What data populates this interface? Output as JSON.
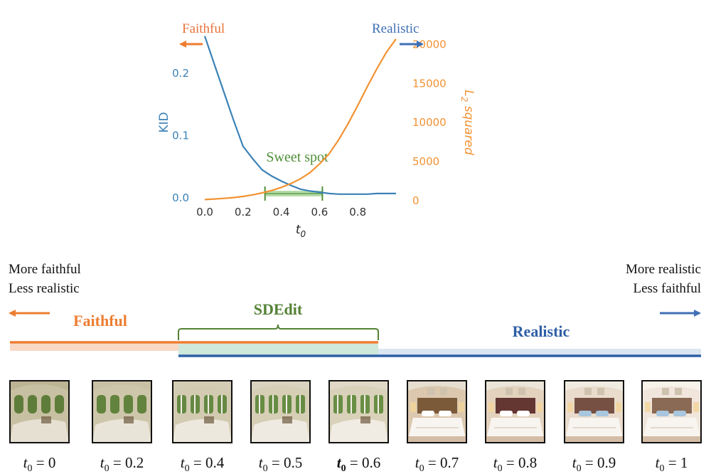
{
  "chart_data": {
    "type": "line",
    "x_axis": {
      "label": "t_0",
      "range": [
        0,
        1
      ],
      "ticks": [
        "0.0",
        "0.2",
        "0.4",
        "0.6",
        "0.8"
      ]
    },
    "y_left": {
      "label": "KID",
      "range": [
        0,
        0.27
      ],
      "ticks": [
        "0.0",
        "0.1",
        "0.2"
      ],
      "color": "#3b82b7"
    },
    "y_right": {
      "label": "L_2 squared",
      "range": [
        0,
        21500
      ],
      "ticks": [
        "0",
        "5000",
        "10000",
        "15000",
        "20000"
      ],
      "color": "#f39233"
    },
    "series": [
      {
        "axis": "left",
        "color": "#3b82b7",
        "x": [
          0.0,
          0.05,
          0.1,
          0.15,
          0.2,
          0.25,
          0.3,
          0.35,
          0.4,
          0.45,
          0.5,
          0.55,
          0.6,
          0.65,
          0.7,
          0.75,
          0.8,
          0.85,
          0.9,
          0.95,
          1.0
        ],
        "y": [
          0.26,
          0.215,
          0.17,
          0.125,
          0.083,
          0.063,
          0.045,
          0.035,
          0.027,
          0.02,
          0.014,
          0.011,
          0.009,
          0.007,
          0.006,
          0.006,
          0.006,
          0.006,
          0.007,
          0.007,
          0.007
        ]
      },
      {
        "axis": "right",
        "color": "#f39233",
        "x": [
          0.0,
          0.05,
          0.1,
          0.15,
          0.2,
          0.25,
          0.3,
          0.35,
          0.4,
          0.45,
          0.5,
          0.55,
          0.6,
          0.65,
          0.7,
          0.75,
          0.8,
          0.85,
          0.9,
          0.95,
          1.0
        ],
        "y": [
          150,
          220,
          300,
          400,
          550,
          750,
          1000,
          1300,
          1700,
          2200,
          2800,
          3600,
          4700,
          6000,
          7800,
          9900,
          12200,
          14600,
          16900,
          19000,
          20700
        ]
      }
    ],
    "sweet_spot": {
      "label": "Sweet spot",
      "range": [
        0.3,
        0.6
      ],
      "color": "#4f8f3a"
    },
    "direction_labels": {
      "left": {
        "text": "Faithful",
        "color": "#e8743b"
      },
      "right": {
        "text": "Realistic",
        "color": "#3f6fb5"
      }
    }
  },
  "scale_bar": {
    "left_note": [
      "More faithful",
      "Less realistic"
    ],
    "right_note": [
      "More realistic",
      "Less faithful"
    ],
    "faithful_label": "Faithful",
    "sdedit_label": "SDEdit",
    "realistic_label": "Realistic",
    "colors": {
      "faithful": "#ed7d31",
      "sdedit": "#548235",
      "realistic": "#2e5fa6"
    }
  },
  "samples": [
    {
      "value": "0",
      "stage": 0.0
    },
    {
      "value": "0.2",
      "stage": 0.2
    },
    {
      "value": "0.4",
      "stage": 0.4
    },
    {
      "value": "0.5",
      "stage": 0.5
    },
    {
      "value": "0.6",
      "stage": 0.6,
      "bold": true
    },
    {
      "value": "0.7",
      "stage": 0.7
    },
    {
      "value": "0.8",
      "stage": 0.8
    },
    {
      "value": "0.9",
      "stage": 0.9
    },
    {
      "value": "1",
      "stage": 1.0
    }
  ]
}
